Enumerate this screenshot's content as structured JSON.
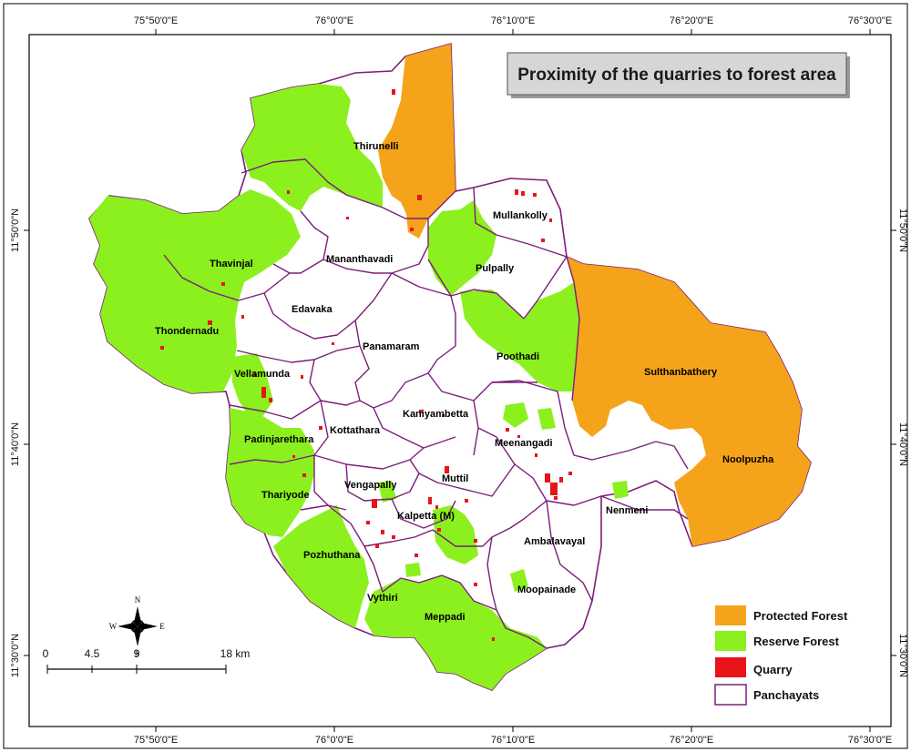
{
  "map": {
    "title": "Proximity of the quarries to forest area",
    "colors": {
      "protected_forest": "#F5A31A",
      "reserve_forest": "#8CF01E",
      "quarry": "#E8141A",
      "panchayat_border": "#7B1E7A",
      "land": "#FFFFFF"
    },
    "graticule": {
      "longitudes": [
        "75°50'0\"E",
        "76°0'0\"E",
        "76°10'0\"E",
        "76°20'0\"E",
        "76°30'0\"E"
      ],
      "latitudes": [
        "11°50'0\"N",
        "11°40'0\"N",
        "11°30'0\"N"
      ]
    },
    "panchayats": [
      "Thirunelli",
      "Mullankolly",
      "Mananthavadi",
      "Thavinjal",
      "Pulpally",
      "Edavaka",
      "Thondernadu",
      "Panamaram",
      "Poothadi",
      "Sulthanbathery",
      "Vellamunda",
      "Kaniyambetta",
      "Kottathara",
      "Padinjarethara",
      "Meenangadi",
      "Noolpuzha",
      "Muttil",
      "Thariyode",
      "Vengapally",
      "Kalpetta (M)",
      "Nenmeni",
      "Ambalavayal",
      "Pozhuthana",
      "Vythiri",
      "Moopainade",
      "Meppadi"
    ],
    "legend": [
      {
        "label": "Protected Forest",
        "key": "protected_forest"
      },
      {
        "label": "Reserve Forest",
        "key": "reserve_forest"
      },
      {
        "label": "Quarry",
        "key": "quarry"
      },
      {
        "label": "Panchayats",
        "key": "panchayats"
      }
    ],
    "scale_bar": {
      "ticks": [
        "0",
        "4.5",
        "9",
        "18 km"
      ]
    },
    "compass": {
      "n": "N",
      "s": "S",
      "e": "E",
      "w": "W"
    }
  }
}
